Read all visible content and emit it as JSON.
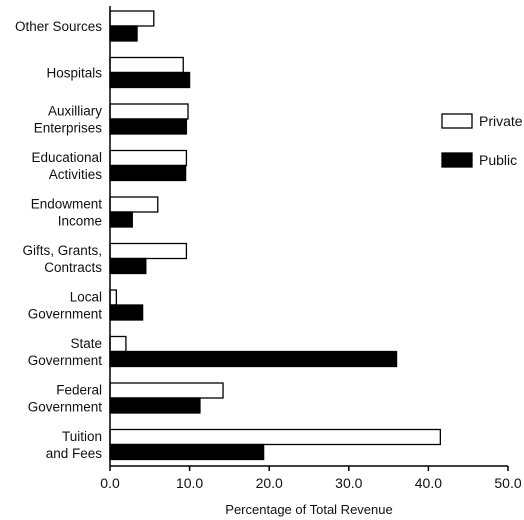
{
  "chart_data": {
    "type": "bar",
    "orientation": "horizontal",
    "xlabel": "Percentage of Total Revenue",
    "xlim": [
      0,
      50
    ],
    "xticks": [
      "0.0",
      "10.0",
      "20.0",
      "30.0",
      "40.0",
      "50.0"
    ],
    "legend_position": "right",
    "categories": [
      [
        "Other Sources"
      ],
      [
        "Hospitals"
      ],
      [
        "Auxilliary",
        "Enterprises"
      ],
      [
        "Educational",
        "Activities"
      ],
      [
        "Endowment",
        "Income"
      ],
      [
        "Gifts, Grants,",
        "Contracts"
      ],
      [
        "Local",
        "Government"
      ],
      [
        "State",
        "Government"
      ],
      [
        "Federal",
        "Government"
      ],
      [
        "Tuition",
        "and Fees"
      ]
    ],
    "series": [
      {
        "name": "Private",
        "color": "#ffffff",
        "values": [
          5.5,
          9.2,
          9.8,
          9.6,
          6.0,
          9.6,
          0.8,
          2.0,
          14.2,
          41.5
        ]
      },
      {
        "name": "Public",
        "color": "#000000",
        "values": [
          3.4,
          10.0,
          9.6,
          9.5,
          2.8,
          4.5,
          4.1,
          36.0,
          11.3,
          19.3
        ]
      }
    ]
  }
}
